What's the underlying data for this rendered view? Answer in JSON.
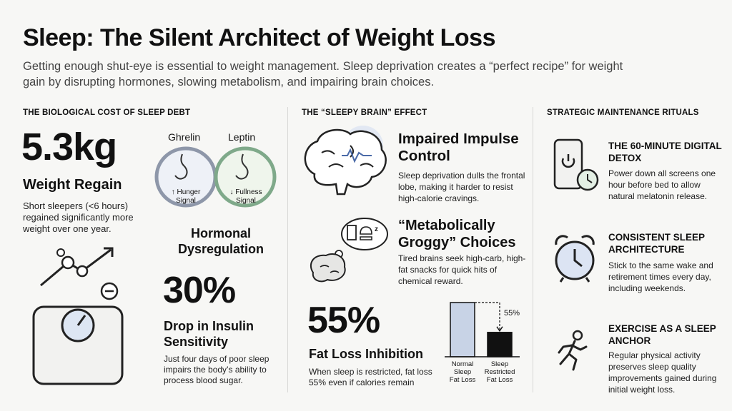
{
  "header": {
    "title": "Sleep: The Silent Architect of Weight Loss",
    "intro": "Getting enough shut-eye is essential to weight management. Sleep deprivation creates a “perfect recipe” for weight gain by disrupting hormones, slowing metabolism, and impairing brain choices."
  },
  "col1": {
    "heading": "THE BIOLOGICAL COST OF SLEEP DEBT",
    "stat1_value": "5.3kg",
    "stat1_label": "Weight Regain",
    "stat1_desc": "Short sleepers (<6 hours) regained significantly more weight over one year.",
    "ghrelin_label": "Ghrelin",
    "leptin_label": "Leptin",
    "hunger_signal": "↑ Hunger Signal",
    "fullness_signal": "↓ Fullness Signal",
    "hormonal_label": "Hormonal Dysregulation",
    "stat2_value": "30%",
    "stat2_label": "Drop in Insulin Sensitivity",
    "stat2_desc": "Just four days of poor sleep impairs the body’s ability to process blood sugar."
  },
  "col2": {
    "heading": "THE “SLEEPY BRAIN” EFFECT",
    "item1_title": "Impaired Impulse Control",
    "item1_desc": "Sleep deprivation dulls the frontal lobe, making it harder to resist high-calorie cravings.",
    "item2_title": "“Metabolically Groggy” Choices",
    "item2_desc": "Tired brains seek high-carb, high-fat snacks for quick hits of chemical reward.",
    "stat_value": "55%",
    "stat_label": "Fat Loss Inhibition",
    "stat_desc": "When sleep is restricted, fat loss 55% even if calories remain",
    "dream_text": "z"
  },
  "col3": {
    "heading": "STRATEGIC MAINTENANCE RITUALS",
    "item1_title": "THE 60-MINUTE DIGITAL DETOX",
    "item1_desc": "Power down all screens one hour before bed to allow natural melatonin release.",
    "item2_title": "CONSISTENT SLEEP ARCHITECTURE",
    "item2_desc": "Stick to the same wake and retirement times every day, including weekends.",
    "item3_title": "EXERCISE AS A SLEEP ANCHOR",
    "item3_desc": "Regular physical activity preserves sleep quality improvements gained during initial weight loss."
  },
  "chart_data": {
    "type": "bar",
    "categories": [
      "Normal Sleep Fat Loss",
      "Sleep Restricted Fat Loss"
    ],
    "category_lines": [
      [
        "Normal",
        "Sleep",
        "Fat Loss"
      ],
      [
        "Sleep",
        "Restricted",
        "Fat Loss"
      ]
    ],
    "values": [
      100,
      45
    ],
    "annotation": "55%",
    "colors": [
      "#c8d3e6",
      "#111111"
    ]
  }
}
